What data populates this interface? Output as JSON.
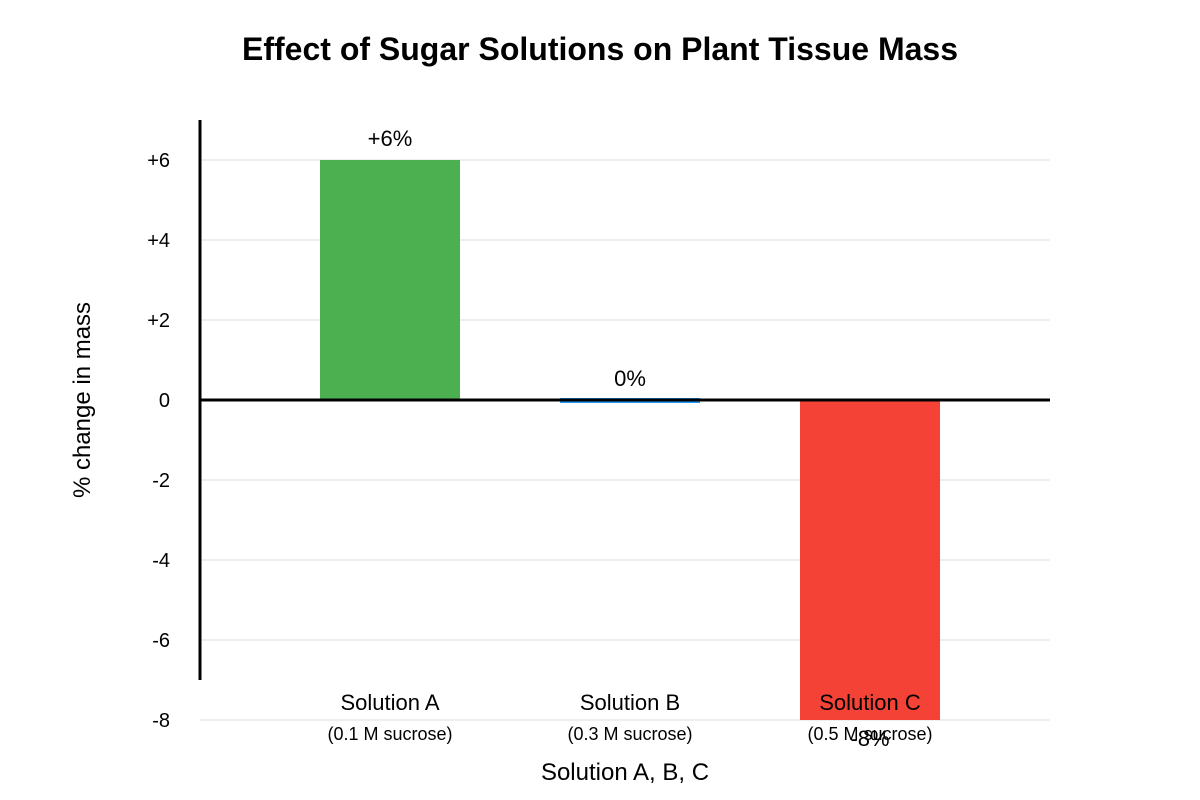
{
  "chart_data": {
    "type": "bar",
    "title": "Effect of Sugar Solutions on Plant Tissue Mass",
    "xlabel": "Solution A, B, C",
    "ylabel": "% change in mass",
    "categories": [
      "Solution A",
      "Solution B",
      "Solution C"
    ],
    "category_sublabels": [
      "(0.1 M sucrose)",
      "(0.3 M sucrose)",
      "(0.5 M sucrose)"
    ],
    "values": [
      6,
      0,
      -8
    ],
    "data_labels": [
      "+6%",
      "0%",
      "-8%"
    ],
    "colors": [
      "#4caf50",
      "#2196f3",
      "#f44336"
    ],
    "ylim": [
      -8,
      6
    ],
    "yticks": [
      6,
      4,
      2,
      0,
      -2,
      -4,
      -6,
      -8
    ],
    "ytick_labels": [
      "+6",
      "+4",
      "+2",
      "0",
      "-2",
      "-4",
      "-6",
      "-8"
    ],
    "grid": true,
    "legend": "none"
  }
}
